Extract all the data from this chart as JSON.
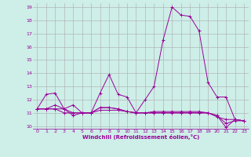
{
  "xlabel": "Windchill (Refroidissement éolien,°C)",
  "background_color": "#ceeee8",
  "grid_color": "#aaaaaa",
  "line_color": "#990099",
  "ylim": [
    9.8,
    19.3
  ],
  "xlim": [
    -0.5,
    23.5
  ],
  "yticks": [
    10,
    11,
    12,
    13,
    14,
    15,
    16,
    17,
    18,
    19
  ],
  "xticks": [
    0,
    1,
    2,
    3,
    4,
    5,
    6,
    7,
    8,
    9,
    10,
    11,
    12,
    13,
    14,
    15,
    16,
    17,
    18,
    19,
    20,
    21,
    22,
    23
  ],
  "series": [
    [
      11.3,
      12.4,
      12.5,
      11.3,
      10.8,
      11.0,
      11.0,
      12.5,
      13.9,
      12.4,
      12.2,
      11.0,
      12.0,
      13.0,
      16.5,
      19.0,
      18.4,
      18.3,
      17.2,
      13.3,
      12.2,
      12.2,
      10.5,
      10.4
    ],
    [
      11.3,
      11.3,
      11.6,
      11.3,
      11.6,
      11.0,
      11.0,
      11.4,
      11.4,
      11.3,
      11.1,
      11.0,
      11.0,
      11.1,
      11.1,
      11.1,
      11.1,
      11.1,
      11.1,
      11.0,
      10.8,
      10.2,
      10.4,
      10.4
    ],
    [
      11.3,
      11.3,
      11.3,
      11.3,
      11.0,
      11.0,
      11.0,
      11.4,
      11.4,
      11.3,
      11.1,
      11.0,
      11.0,
      11.0,
      11.0,
      11.0,
      11.0,
      11.0,
      11.0,
      11.0,
      10.8,
      9.9,
      10.5,
      10.4
    ],
    [
      11.3,
      11.3,
      11.3,
      11.0,
      11.0,
      11.0,
      11.0,
      11.2,
      11.2,
      11.2,
      11.1,
      11.0,
      11.0,
      11.0,
      11.0,
      11.0,
      11.0,
      11.0,
      11.0,
      11.0,
      10.7,
      10.5,
      10.5,
      10.4
    ]
  ]
}
